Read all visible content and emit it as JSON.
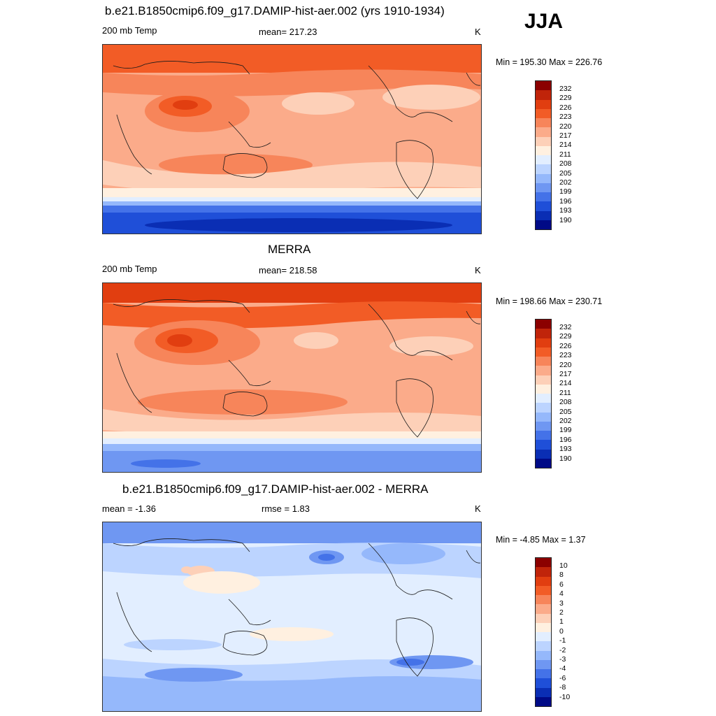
{
  "season": "JJA",
  "panels": [
    {
      "title": "b.e21.B1850cmip6.f09_g17.DAMIP-hist-aer.002 (yrs 1910-1934)",
      "left_label": "200 mb Temp",
      "center_label": "mean= 217.23",
      "units": "K",
      "minmax": "Min = 195.30 Max = 226.76"
    },
    {
      "title": "MERRA",
      "left_label": "200 mb Temp",
      "center_label": "mean= 218.58",
      "units": "K",
      "minmax": "Min = 198.66 Max = 230.71"
    },
    {
      "title": "b.e21.B1850cmip6.f09_g17.DAMIP-hist-aer.002 - MERRA",
      "left_label": "mean =  -1.36",
      "center_label": "rmse =   1.83",
      "units": "K",
      "minmax": "Min =  -4.85 Max =   1.37"
    }
  ],
  "colorbars": {
    "temp": {
      "labels": [
        "232",
        "229",
        "226",
        "223",
        "220",
        "217",
        "214",
        "211",
        "208",
        "205",
        "202",
        "199",
        "196",
        "193",
        "190"
      ],
      "colors": [
        "#8b0000",
        "#c0240a",
        "#e13e10",
        "#f25c26",
        "#f7855a",
        "#fbab8a",
        "#fdd0b8",
        "#fff0e0",
        "#e2eeff",
        "#bcd4ff",
        "#95b8fb",
        "#6f97f2",
        "#4472e8",
        "#1f4fd8",
        "#0a2eb4",
        "#000a86"
      ]
    },
    "diff": {
      "labels": [
        "10",
        "8",
        "6",
        "4",
        "3",
        "2",
        "1",
        "0",
        "-1",
        "-2",
        "-3",
        "-4",
        "-6",
        "-8",
        "-10"
      ],
      "colors": [
        "#8b0000",
        "#c0240a",
        "#e13e10",
        "#f25c26",
        "#f7855a",
        "#fbab8a",
        "#fdd0b8",
        "#fff0e0",
        "#e2eeff",
        "#bcd4ff",
        "#95b8fb",
        "#6f97f2",
        "#4472e8",
        "#1f4fd8",
        "#0a2eb4",
        "#000a86"
      ]
    }
  }
}
